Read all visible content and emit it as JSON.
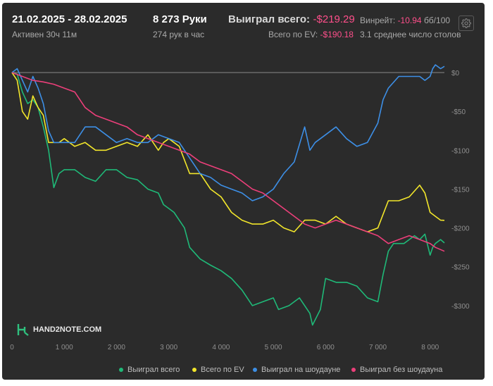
{
  "header": {
    "date_range": "21.02.2025 - 28.02.2025",
    "active_time": "Активен 30ч 11м",
    "hands": "8 273 Руки",
    "hands_per_hour": "274 рук в час",
    "won_total_label": "Выиграл всего:",
    "won_total_value": "-$219.29",
    "ev_label": "Всего по EV:",
    "ev_value": "-$190.18",
    "winrate_label": "Винрейт:",
    "winrate_value": "-10.94",
    "winrate_unit": "бб/100",
    "avg_tables": "3.1 среднее число столов"
  },
  "watermark": "HAND2NOTE.COM",
  "icons": {
    "settings": "gear-icon",
    "logo": "hand2note-logo-icon"
  },
  "colors": {
    "background": "#2b2b2b",
    "won": "#1fb978",
    "ev": "#f2e62b",
    "showdown": "#3d8fe6",
    "non_showdown": "#ec3f7a",
    "negative": "#ff4f8b"
  },
  "chart_data": {
    "type": "line",
    "xlim": [
      0,
      8273
    ],
    "ylim": [
      -340,
      10
    ],
    "x_ticks": [
      0,
      1000,
      2000,
      3000,
      4000,
      5000,
      6000,
      7000,
      8000
    ],
    "x_tick_labels": [
      "0",
      "1 000",
      "2 000",
      "3 000",
      "4 000",
      "5 000",
      "6 000",
      "7 000",
      "8 000"
    ],
    "y_ticks": [
      0,
      -50,
      -100,
      -150,
      -200,
      -250,
      -300
    ],
    "y_tick_labels": [
      "$0",
      "-$50",
      "-$100",
      "-$150",
      "-$200",
      "-$250",
      "-$300"
    ],
    "legend_position": "bottom-right",
    "grid": false,
    "series": [
      {
        "name": "Выиграл всего",
        "color": "#1fb978",
        "points": [
          [
            0,
            0
          ],
          [
            100,
            -2
          ],
          [
            200,
            -25
          ],
          [
            300,
            -40
          ],
          [
            400,
            -35
          ],
          [
            500,
            -45
          ],
          [
            600,
            -70
          ],
          [
            700,
            -100
          ],
          [
            800,
            -148
          ],
          [
            900,
            -130
          ],
          [
            1000,
            -125
          ],
          [
            1200,
            -125
          ],
          [
            1400,
            -135
          ],
          [
            1600,
            -140
          ],
          [
            1800,
            -125
          ],
          [
            2000,
            -125
          ],
          [
            2200,
            -135
          ],
          [
            2400,
            -138
          ],
          [
            2600,
            -150
          ],
          [
            2800,
            -155
          ],
          [
            2900,
            -170
          ],
          [
            3000,
            -175
          ],
          [
            3100,
            -180
          ],
          [
            3300,
            -200
          ],
          [
            3400,
            -225
          ],
          [
            3600,
            -240
          ],
          [
            3800,
            -248
          ],
          [
            4000,
            -255
          ],
          [
            4200,
            -265
          ],
          [
            4400,
            -280
          ],
          [
            4600,
            -300
          ],
          [
            4800,
            -295
          ],
          [
            5000,
            -290
          ],
          [
            5100,
            -305
          ],
          [
            5300,
            -300
          ],
          [
            5500,
            -290
          ],
          [
            5600,
            -300
          ],
          [
            5700,
            -310
          ],
          [
            5750,
            -325
          ],
          [
            5900,
            -305
          ],
          [
            6000,
            -265
          ],
          [
            6200,
            -270
          ],
          [
            6400,
            -270
          ],
          [
            6600,
            -275
          ],
          [
            6800,
            -290
          ],
          [
            7000,
            -295
          ],
          [
            7100,
            -260
          ],
          [
            7200,
            -230
          ],
          [
            7300,
            -220
          ],
          [
            7500,
            -220
          ],
          [
            7700,
            -210
          ],
          [
            7800,
            -215
          ],
          [
            7900,
            -208
          ],
          [
            8000,
            -235
          ],
          [
            8050,
            -225
          ],
          [
            8100,
            -220
          ],
          [
            8200,
            -215
          ],
          [
            8273,
            -219.29
          ]
        ]
      },
      {
        "name": "Всего по EV",
        "color": "#f2e62b",
        "points": [
          [
            0,
            0
          ],
          [
            100,
            -10
          ],
          [
            200,
            -50
          ],
          [
            300,
            -60
          ],
          [
            400,
            -30
          ],
          [
            500,
            -45
          ],
          [
            600,
            -55
          ],
          [
            700,
            -90
          ],
          [
            800,
            -90
          ],
          [
            900,
            -90
          ],
          [
            1000,
            -85
          ],
          [
            1200,
            -95
          ],
          [
            1400,
            -90
          ],
          [
            1600,
            -100
          ],
          [
            1800,
            -100
          ],
          [
            2000,
            -95
          ],
          [
            2200,
            -90
          ],
          [
            2400,
            -95
          ],
          [
            2600,
            -80
          ],
          [
            2800,
            -100
          ],
          [
            2900,
            -90
          ],
          [
            3000,
            -85
          ],
          [
            3200,
            -95
          ],
          [
            3400,
            -130
          ],
          [
            3600,
            -130
          ],
          [
            3800,
            -150
          ],
          [
            4000,
            -160
          ],
          [
            4200,
            -180
          ],
          [
            4400,
            -190
          ],
          [
            4600,
            -195
          ],
          [
            4800,
            -195
          ],
          [
            5000,
            -190
          ],
          [
            5200,
            -200
          ],
          [
            5400,
            -205
          ],
          [
            5600,
            -190
          ],
          [
            5800,
            -190
          ],
          [
            6000,
            -195
          ],
          [
            6200,
            -185
          ],
          [
            6400,
            -195
          ],
          [
            6600,
            -200
          ],
          [
            6800,
            -205
          ],
          [
            7000,
            -200
          ],
          [
            7200,
            -165
          ],
          [
            7400,
            -165
          ],
          [
            7600,
            -160
          ],
          [
            7800,
            -145
          ],
          [
            7900,
            -155
          ],
          [
            8000,
            -180
          ],
          [
            8100,
            -185
          ],
          [
            8200,
            -190
          ],
          [
            8273,
            -190.18
          ]
        ]
      },
      {
        "name": "Выиграл на шоудауне",
        "color": "#3d8fe6",
        "points": [
          [
            0,
            0
          ],
          [
            100,
            5
          ],
          [
            200,
            -10
          ],
          [
            300,
            -25
          ],
          [
            400,
            -5
          ],
          [
            500,
            -20
          ],
          [
            600,
            -40
          ],
          [
            700,
            -75
          ],
          [
            800,
            -90
          ],
          [
            1000,
            -90
          ],
          [
            1200,
            -90
          ],
          [
            1400,
            -70
          ],
          [
            1600,
            -70
          ],
          [
            1800,
            -80
          ],
          [
            2000,
            -90
          ],
          [
            2200,
            -85
          ],
          [
            2400,
            -90
          ],
          [
            2600,
            -90
          ],
          [
            2800,
            -80
          ],
          [
            3000,
            -85
          ],
          [
            3200,
            -90
          ],
          [
            3400,
            -110
          ],
          [
            3600,
            -130
          ],
          [
            3800,
            -135
          ],
          [
            4000,
            -145
          ],
          [
            4200,
            -150
          ],
          [
            4400,
            -155
          ],
          [
            4600,
            -165
          ],
          [
            4800,
            -160
          ],
          [
            5000,
            -150
          ],
          [
            5200,
            -130
          ],
          [
            5400,
            -115
          ],
          [
            5600,
            -70
          ],
          [
            5700,
            -100
          ],
          [
            5800,
            -90
          ],
          [
            6000,
            -80
          ],
          [
            6200,
            -70
          ],
          [
            6400,
            -85
          ],
          [
            6600,
            -95
          ],
          [
            6800,
            -90
          ],
          [
            7000,
            -65
          ],
          [
            7100,
            -35
          ],
          [
            7200,
            -20
          ],
          [
            7400,
            -5
          ],
          [
            7600,
            -5
          ],
          [
            7800,
            -5
          ],
          [
            7900,
            -10
          ],
          [
            8000,
            -5
          ],
          [
            8050,
            5
          ],
          [
            8100,
            10
          ],
          [
            8200,
            5
          ],
          [
            8273,
            8
          ]
        ]
      },
      {
        "name": "Выиграл без шоудауна",
        "color": "#ec3f7a",
        "points": [
          [
            0,
            0
          ],
          [
            200,
            -5
          ],
          [
            400,
            -10
          ],
          [
            600,
            -12
          ],
          [
            800,
            -15
          ],
          [
            1000,
            -20
          ],
          [
            1200,
            -25
          ],
          [
            1400,
            -45
          ],
          [
            1600,
            -55
          ],
          [
            1800,
            -60
          ],
          [
            2000,
            -65
          ],
          [
            2200,
            -70
          ],
          [
            2400,
            -80
          ],
          [
            2600,
            -85
          ],
          [
            2800,
            -90
          ],
          [
            3000,
            -95
          ],
          [
            3200,
            -100
          ],
          [
            3400,
            -105
          ],
          [
            3600,
            -115
          ],
          [
            3800,
            -120
          ],
          [
            4000,
            -125
          ],
          [
            4200,
            -130
          ],
          [
            4400,
            -140
          ],
          [
            4600,
            -150
          ],
          [
            4800,
            -155
          ],
          [
            5000,
            -165
          ],
          [
            5200,
            -175
          ],
          [
            5400,
            -185
          ],
          [
            5600,
            -195
          ],
          [
            5800,
            -200
          ],
          [
            6000,
            -195
          ],
          [
            6200,
            -190
          ],
          [
            6400,
            -195
          ],
          [
            6600,
            -200
          ],
          [
            6800,
            -205
          ],
          [
            7000,
            -210
          ],
          [
            7200,
            -220
          ],
          [
            7400,
            -215
          ],
          [
            7600,
            -210
          ],
          [
            7800,
            -215
          ],
          [
            8000,
            -220
          ],
          [
            8100,
            -225
          ],
          [
            8273,
            -230
          ]
        ]
      }
    ]
  }
}
